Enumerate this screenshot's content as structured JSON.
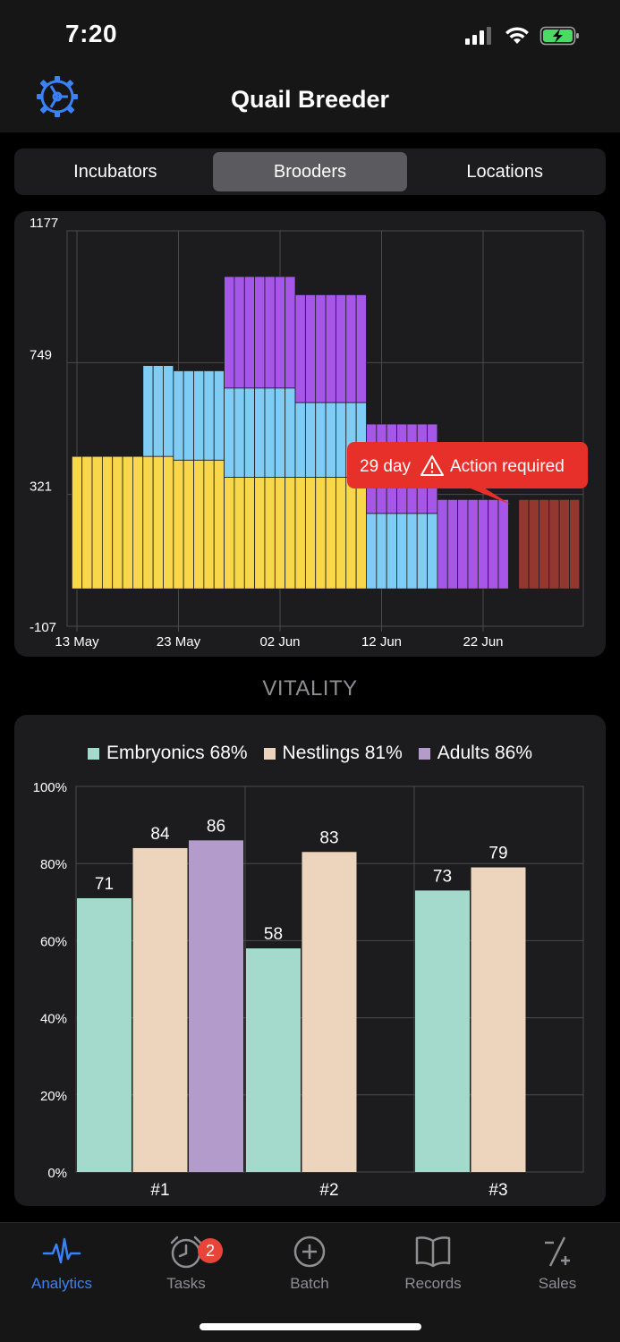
{
  "status": {
    "time": "7:20"
  },
  "nav": {
    "title": "Quail Breeder"
  },
  "segments": [
    {
      "label": "Incubators",
      "active": false
    },
    {
      "label": "Brooders",
      "active": true
    },
    {
      "label": "Locations",
      "active": false
    }
  ],
  "tooltip": {
    "day": "29 day",
    "message": "Action required"
  },
  "vitality": {
    "title": "VITALITY",
    "legend": [
      {
        "label": "Embryonics 68%",
        "color": "#a3dacc"
      },
      {
        "label": "Nestlings 81%",
        "color": "#edd4bc"
      },
      {
        "label": "Adults 86%",
        "color": "#b39ccc"
      }
    ]
  },
  "chart_data": [
    {
      "type": "bar",
      "stacked": true,
      "title": "",
      "ylim": [
        -107,
        1177
      ],
      "y_ticks": [
        "1177",
        "749",
        "321",
        "-107"
      ],
      "x_ticks": [
        "13 May",
        "23 May",
        "02 Jun",
        "12 Jun",
        "22 Jun"
      ],
      "x_start_day": 0,
      "x_tick_days": [
        0,
        10,
        20,
        30,
        40
      ],
      "groups": [
        {
          "from_day": -0.5,
          "to_day": 6.5,
          "yellow": 430,
          "blue": 0,
          "purple": 0,
          "red": 0
        },
        {
          "from_day": 6.5,
          "to_day": 9.5,
          "yellow": 430,
          "blue": 295,
          "purple": 0,
          "red": 0
        },
        {
          "from_day": 9.5,
          "to_day": 13.5,
          "yellow": 418,
          "blue": 290,
          "purple": 0,
          "red": 0
        },
        {
          "from_day": 13.5,
          "to_day": 14.5,
          "yellow": 418,
          "blue": 290,
          "purple": 0,
          "red": 0
        },
        {
          "from_day": 14.5,
          "to_day": 21.5,
          "yellow": 362,
          "blue": 290,
          "purple": 362,
          "red": 0
        },
        {
          "from_day": 21.5,
          "to_day": 28.5,
          "yellow": 362,
          "blue": 243,
          "purple": 350,
          "red": 0
        },
        {
          "from_day": 28.5,
          "to_day": 35.5,
          "yellow": 0,
          "blue": 245,
          "purple": 290,
          "red": 0
        },
        {
          "from_day": 35.5,
          "to_day": 42.5,
          "yellow": 0,
          "blue": 0,
          "purple": 290,
          "red": 0
        },
        {
          "from_day": 43.5,
          "to_day": 49.5,
          "yellow": 0,
          "blue": 0,
          "purple": 0,
          "red": 290
        }
      ],
      "colors": {
        "yellow": "#f9d74b",
        "blue": "#7fccf4",
        "purple": "#a657e8",
        "red": "#93372f"
      }
    },
    {
      "type": "bar",
      "title": "VITALITY",
      "categories": [
        "#1",
        "#2",
        "#3"
      ],
      "ylim": [
        0,
        100
      ],
      "y_ticks": [
        "0%",
        "20%",
        "40%",
        "60%",
        "80%",
        "100%"
      ],
      "series": [
        {
          "name": "Embryonics",
          "color": "#a3dacc",
          "values": [
            71,
            58,
            73
          ]
        },
        {
          "name": "Nestlings",
          "color": "#edd4bc",
          "values": [
            84,
            83,
            79
          ]
        },
        {
          "name": "Adults",
          "color": "#b39ccc",
          "values": [
            86,
            null,
            null
          ]
        }
      ]
    }
  ],
  "tabs": [
    {
      "label": "Analytics",
      "icon": "pulse-icon",
      "active": true
    },
    {
      "label": "Tasks",
      "icon": "alarm-clock-icon",
      "badge": "2"
    },
    {
      "label": "Batch",
      "icon": "plus-circle-icon"
    },
    {
      "label": "Records",
      "icon": "book-icon"
    },
    {
      "label": "Sales",
      "icon": "sales-icon"
    }
  ]
}
